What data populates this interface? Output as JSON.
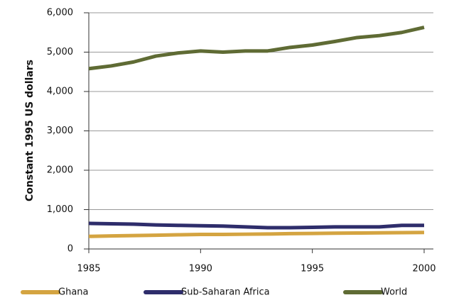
{
  "chart_data": {
    "type": "line",
    "y_label": "Constant 1995 US dollars",
    "x": [
      1985,
      1986,
      1987,
      1988,
      1989,
      1990,
      1991,
      1992,
      1993,
      1994,
      1995,
      1996,
      1997,
      1998,
      1999,
      2000
    ],
    "xlim": [
      1985,
      2000
    ],
    "xticks": [
      1985,
      1990,
      1995,
      2000
    ],
    "ylim": [
      0,
      6000
    ],
    "yticks": [
      0,
      {
        "value": 1000,
        "label": "1,000"
      },
      {
        "value": 2000,
        "label": "2,000"
      },
      {
        "value": 3000,
        "label": "3,000"
      },
      {
        "value": 4000,
        "label": "4,000"
      },
      {
        "value": 5000,
        "label": "5,000"
      },
      {
        "value": 6000,
        "label": "6,000"
      }
    ],
    "grid": true,
    "legend": "bottom",
    "series": [
      {
        "name": "Ghana",
        "color": "#d4a441",
        "values": [
          320,
          330,
          340,
          350,
          360,
          370,
          370,
          375,
          380,
          390,
          395,
          400,
          405,
          410,
          415,
          420
        ]
      },
      {
        "name": "Sub-Saharan Africa",
        "color": "#2e2d6b",
        "values": [
          650,
          640,
          630,
          610,
          600,
          590,
          580,
          560,
          540,
          540,
          550,
          560,
          560,
          560,
          600,
          600
        ]
      },
      {
        "name": "World",
        "color": "#5f6b34",
        "values": [
          4580,
          4650,
          4750,
          4900,
          4980,
          5030,
          5000,
          5030,
          5030,
          5120,
          5180,
          5270,
          5370,
          5420,
          5500,
          5630
        ]
      }
    ]
  }
}
